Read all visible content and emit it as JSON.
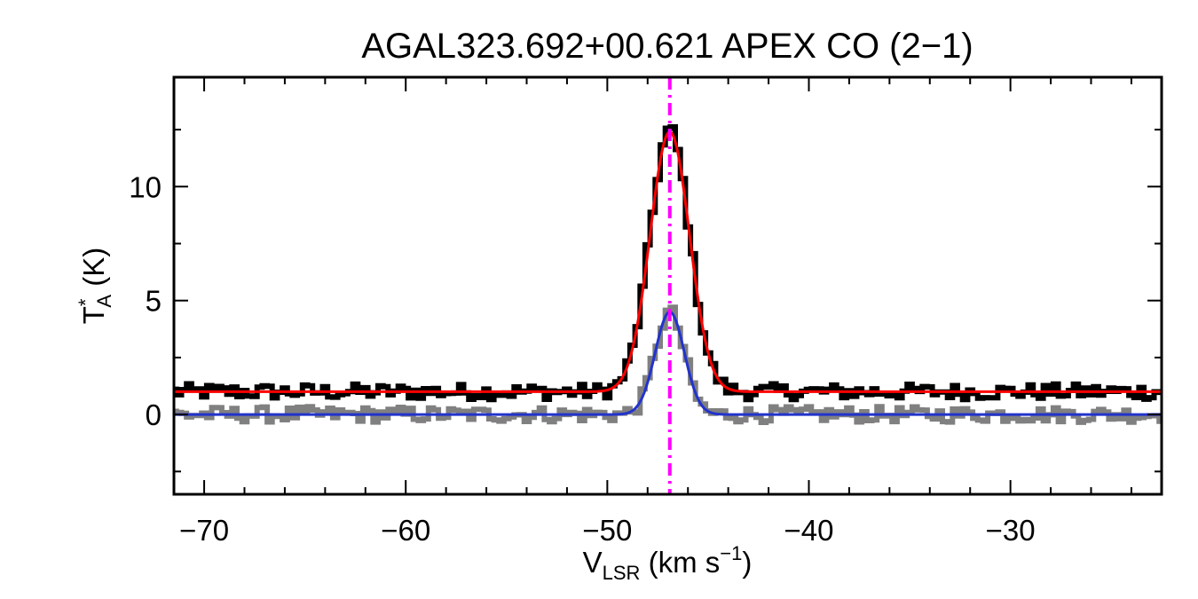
{
  "chart_data": {
    "type": "line",
    "title": "AGAL323.692+00.621   APEX CO (2−1)",
    "xlabel": {
      "main": "V",
      "sub": "LSR",
      "rest": " (km s",
      "sup": "−1",
      "close": ")"
    },
    "ylabel": {
      "main": "T",
      "sup": "*",
      "sub": "A",
      "rest": " (K)"
    },
    "xlim": [
      -71.5,
      -22.5
    ],
    "ylim": [
      -3.5,
      14.8
    ],
    "x_ticks": [
      -70,
      -60,
      -50,
      -40,
      -30
    ],
    "x_tick_labels": [
      "−70",
      "−60",
      "−50",
      "−40",
      "−30"
    ],
    "y_ticks": [
      0,
      5,
      10
    ],
    "y_tick_labels": [
      "0",
      "5",
      "10"
    ],
    "vline": {
      "x": -46.9,
      "color": "#ff00ff",
      "style": "dash-dot"
    },
    "series": [
      {
        "role": "spectrum-observed-offset",
        "color": "#000000",
        "style": "histogram",
        "baseline": 1.0,
        "peak": 11.5,
        "center": -46.9,
        "fwhm": 2.3,
        "noise": 0.35
      },
      {
        "role": "spectrum-observed",
        "color": "#808080",
        "style": "histogram",
        "baseline": 0.0,
        "peak": 4.5,
        "center": -46.9,
        "fwhm": 1.7,
        "noise": 0.35
      },
      {
        "role": "fit-offset",
        "color": "#ff0000",
        "style": "line",
        "baseline": 1.0,
        "peak": 11.4,
        "center": -46.9,
        "fwhm": 2.3
      },
      {
        "role": "fit",
        "color": "#2233cc",
        "style": "line",
        "baseline": 0.0,
        "peak": 4.5,
        "center": -46.9,
        "fwhm": 1.7
      }
    ]
  }
}
